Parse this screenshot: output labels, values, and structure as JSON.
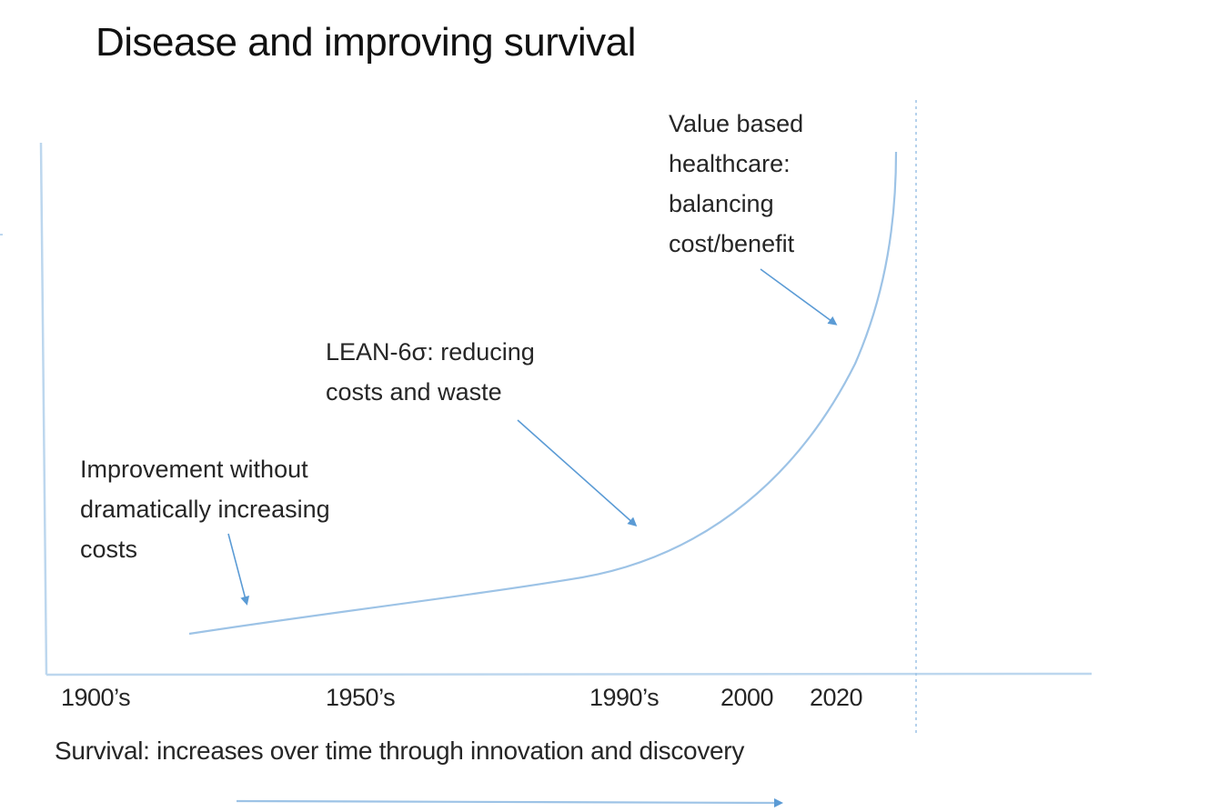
{
  "title": "Disease and improving survival",
  "annotations": {
    "value_based": {
      "lines": [
        "Value based",
        "healthcare:",
        "balancing",
        "cost/benefit"
      ]
    },
    "lean": {
      "lines": [
        "LEAN-6σ: reducing",
        "costs and waste"
      ]
    },
    "improvement": {
      "lines": [
        "Improvement without",
        "dramatically increasing",
        "costs"
      ]
    }
  },
  "x_axis": {
    "ticks": [
      "1900’s",
      "1950’s",
      "1990’s",
      "2000",
      "2020"
    ],
    "label": "Survival: increases over time through innovation and discovery"
  },
  "colors": {
    "curve": "#9dc3e6",
    "axis": "#bdd7ee",
    "arrow": "#5b9bd5",
    "text": "#262626"
  }
}
